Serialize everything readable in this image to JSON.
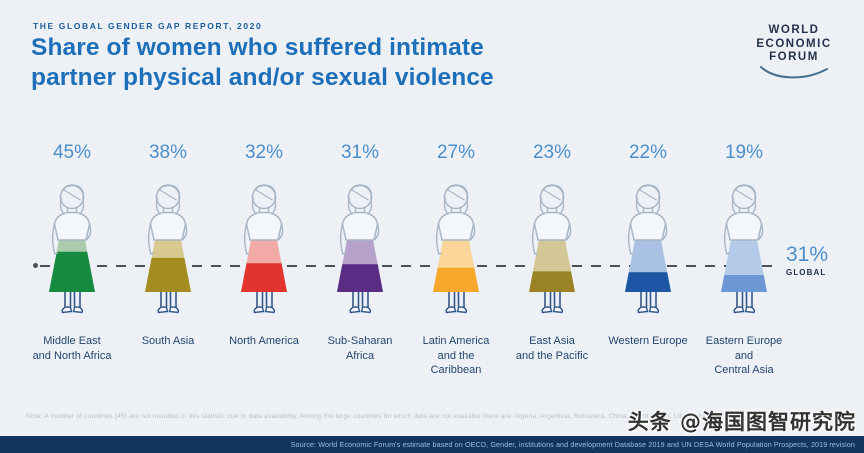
{
  "header": {
    "report_label": "THE GLOBAL GENDER GAP REPORT, 2020",
    "title": "Share of women who suffered intimate\npartner physical and/or sexual violence"
  },
  "logo": {
    "line1": "WORLD",
    "line2": "ECONOMIC",
    "line3": "FORUM"
  },
  "chart_data": {
    "type": "bar",
    "title": "Share of women who suffered intimate partner physical and/or sexual violence",
    "subtitle": "THE GLOBAL GENDER GAP REPORT, 2020",
    "unit": "%",
    "categories": [
      "Middle East and North Africa",
      "South Asia",
      "North America",
      "Sub-Saharan Africa",
      "Latin America and the Caribbean",
      "East Asia and the Pacific",
      "Western Europe",
      "Eastern Europe and Central Asia"
    ],
    "values": [
      45,
      38,
      32,
      31,
      27,
      23,
      22,
      19
    ],
    "data_labels": [
      "45%",
      "38%",
      "32%",
      "31%",
      "27%",
      "23%",
      "22%",
      "19%"
    ],
    "reference_line": {
      "value": 31,
      "label": "31% GLOBAL",
      "style": "dashed"
    },
    "ylim": [
      0,
      58
    ],
    "grid": false,
    "legend_position": "none",
    "colors_solid": [
      "#168a3e",
      "#a38c22",
      "#e2342e",
      "#5b2c83",
      "#f6a82c",
      "#998325",
      "#1c56a5",
      "#6b97d5"
    ],
    "colors_light": [
      "#a9ccad",
      "#d8c98f",
      "#f2aaa6",
      "#b5a1c9",
      "#fbd59a",
      "#d3c795",
      "#a9c1e2",
      "#b3cbe9"
    ]
  },
  "regions": [
    {
      "pct": "45%",
      "value": 45,
      "display": "Middle East\nand North Africa",
      "solid": "#168a3e",
      "light": "#a9ccad"
    },
    {
      "pct": "38%",
      "value": 38,
      "display": "South Asia",
      "solid": "#a38c22",
      "light": "#d8c98f"
    },
    {
      "pct": "32%",
      "value": 32,
      "display": "North America",
      "solid": "#e2342e",
      "light": "#f2aaa6"
    },
    {
      "pct": "31%",
      "value": 31,
      "display": "Sub-Saharan\nAfrica",
      "solid": "#5b2c83",
      "light": "#b5a1c9"
    },
    {
      "pct": "27%",
      "value": 27,
      "display": "Latin America\nand the\nCaribbean",
      "solid": "#f6a82c",
      "light": "#fbd59a"
    },
    {
      "pct": "23%",
      "value": 23,
      "display": "East Asia\nand the Pacific",
      "solid": "#998325",
      "light": "#d3c795"
    },
    {
      "pct": "22%",
      "value": 22,
      "display": "Western Europe",
      "solid": "#1c56a5",
      "light": "#a9c1e2"
    },
    {
      "pct": "19%",
      "value": 19,
      "display": "Eastern Europe\nand\nCentral Asia",
      "solid": "#6b97d5",
      "light": "#b3cbe9"
    }
  ],
  "global_callout": {
    "pct": "31%",
    "label": "GLOBAL"
  },
  "footnote": "Note: A number of countries (45) are not included in this statistic due to data availability. Among the large countries for which data are not available there are: Algeria, Argentina, Botswana, China, Egypt, Israel, Libya, Morocco, Sud...",
  "source": "Source: World Economic Forum's estimate based on OECD, Gender, institutions and development Database 2019 and UN DESA World Population Prospects, 2019 revision",
  "watermark": "头条 @海国图智研究院",
  "colors": {
    "accent_blue": "#1c6fb8",
    "percent_blue": "#4c8ec9",
    "navy": "#123560",
    "outline": "#a6b5c6"
  }
}
